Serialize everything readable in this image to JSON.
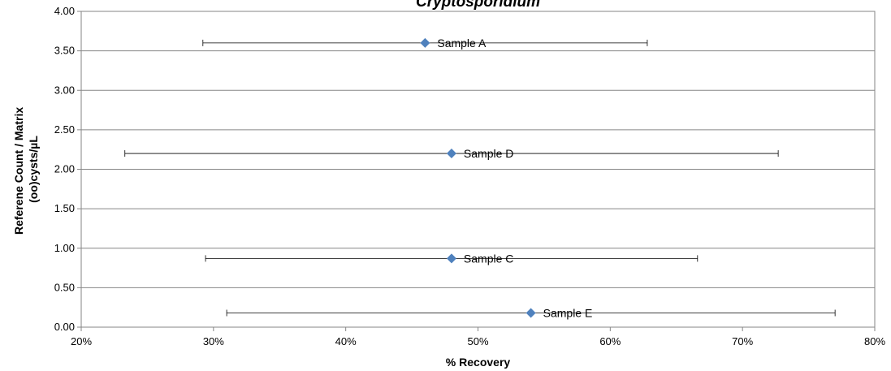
{
  "chart_data": {
    "type": "scatter",
    "title": "Cryptosporidium",
    "xlabel": "% Recovery",
    "ylabel_lines": [
      "Referene Count / Matrix",
      "(oo)cysts/µL"
    ],
    "xlim": [
      0.2,
      0.8
    ],
    "ylim": [
      0,
      4
    ],
    "x_ticks": [
      0.2,
      0.3,
      0.4,
      0.5,
      0.6,
      0.7,
      0.8
    ],
    "x_tick_labels": [
      "20%",
      "30%",
      "40%",
      "50%",
      "60%",
      "70%",
      "80%"
    ],
    "y_ticks": [
      0,
      0.5,
      1,
      1.5,
      2,
      2.5,
      3,
      3.5,
      4
    ],
    "y_tick_labels": [
      "0.00",
      "0.50",
      "1.00",
      "1.50",
      "2.00",
      "2.50",
      "3.00",
      "3.50",
      "4.00"
    ],
    "grid": "horizontal",
    "marker": "diamond",
    "marker_color": "#4F81BD",
    "error_bars": "horizontal",
    "points": [
      {
        "label": "Sample A",
        "x": 0.46,
        "y": 3.6,
        "x_low": 0.292,
        "x_high": 0.628
      },
      {
        "label": "Sample D",
        "x": 0.48,
        "y": 2.2,
        "x_low": 0.233,
        "x_high": 0.727
      },
      {
        "label": "Sample C",
        "x": 0.48,
        "y": 0.87,
        "x_low": 0.294,
        "x_high": 0.666
      },
      {
        "label": "Sample E",
        "x": 0.54,
        "y": 0.18,
        "x_low": 0.31,
        "x_high": 0.77
      }
    ]
  }
}
